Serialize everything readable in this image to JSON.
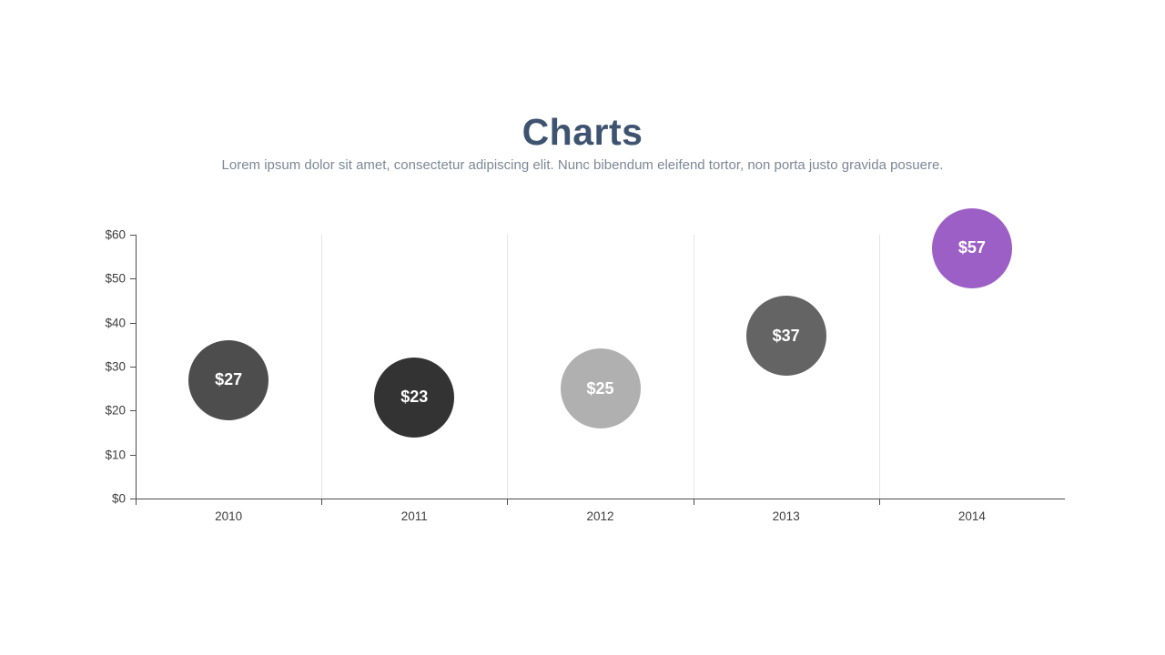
{
  "slide": {
    "title": "Charts",
    "subtitle": "Lorem ipsum dolor sit amet, consectetur adipiscing elit. Nunc bibendum eleifend tortor, non porta justo gravida posuere."
  },
  "chart_data": {
    "type": "scatter",
    "variant": "bubble",
    "title": "Charts",
    "xlabel": "",
    "ylabel": "",
    "categories": [
      "2010",
      "2011",
      "2012",
      "2013",
      "2014"
    ],
    "series": [
      {
        "name": "Value",
        "values": [
          27,
          23,
          25,
          37,
          57
        ],
        "point_labels": [
          "$27",
          "$23",
          "$25",
          "$37",
          "$57"
        ],
        "point_colors": [
          "#4d4d4d",
          "#333333",
          "#b1b0b0",
          "#646464",
          "#9c5fc6"
        ]
      }
    ],
    "y_axis": {
      "min": 0,
      "max": 60,
      "tick_step": 10,
      "tick_labels": [
        "$60",
        "$50",
        "$40",
        "$30",
        "$20",
        "$10",
        "$0"
      ]
    },
    "grid": "vertical lines at category boundaries only",
    "legend_position": "none"
  },
  "theme": {
    "background": "#ffffff",
    "title_color": "#3e536f",
    "subtitle_color": "#7c8895",
    "axis_line_color": "#4d4d4d",
    "gridline_color": "#e4e4e4",
    "tick_label_color": "#3d3d3d",
    "bubble_label_color": "#ffffff"
  }
}
